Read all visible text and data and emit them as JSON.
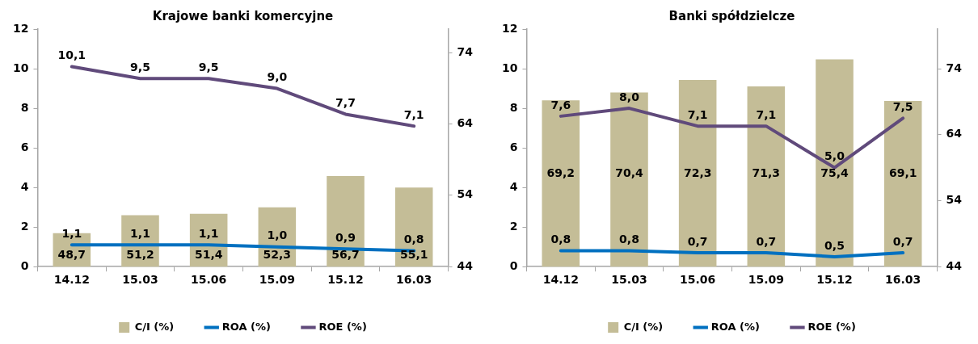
{
  "chart_data": [
    {
      "type": "bar",
      "title": "Krajowe banki komercyjne",
      "categories": [
        "14.12",
        "15.03",
        "15.06",
        "15.09",
        "15.12",
        "16.03"
      ],
      "ylim": [
        0,
        12
      ],
      "yticks": [
        0,
        2,
        4,
        6,
        8,
        10,
        12
      ],
      "y2lim": [
        44,
        77.3
      ],
      "y2ticks": [
        44,
        54,
        64,
        74
      ],
      "grid": false,
      "legend": "bottom",
      "marker": "none",
      "series": [
        {
          "name": "C/I (%)",
          "axis": "y2",
          "color": "#c4bd97",
          "values": [
            48.7,
            51.2,
            51.4,
            52.3,
            56.7,
            55.1
          ],
          "value_labels": [
            "48,7",
            "51,2",
            "51,4",
            "52,3",
            "56,7",
            "55,1"
          ]
        },
        {
          "name": "ROA (%)",
          "type": "line",
          "color": "#0070c0",
          "values": [
            1.1,
            1.1,
            1.1,
            1.0,
            0.9,
            0.8
          ],
          "value_labels": [
            "1,1",
            "1,1",
            "1,1",
            "1,0",
            "0,9",
            "0,8"
          ]
        },
        {
          "name": "ROE (%)",
          "type": "line",
          "color": "#604a7b",
          "values": [
            10.1,
            9.5,
            9.5,
            9.0,
            7.7,
            7.1
          ],
          "value_labels": [
            "10,1",
            "9,5",
            "9,5",
            "9,0",
            "7,7",
            "7,1"
          ]
        }
      ]
    },
    {
      "type": "bar",
      "title": "Banki spółdzielcze",
      "categories": [
        "14.12",
        "15.03",
        "15.06",
        "15.09",
        "15.12",
        "16.03"
      ],
      "ylim": [
        0,
        12
      ],
      "yticks": [
        0,
        2,
        4,
        6,
        8,
        10,
        12
      ],
      "y2lim": [
        44,
        80
      ],
      "y2ticks": [
        44,
        54,
        64,
        74
      ],
      "grid": false,
      "legend": "bottom",
      "marker": "none",
      "series": [
        {
          "name": "C/I (%)",
          "axis": "y2",
          "color": "#c4bd97",
          "values": [
            69.2,
            70.4,
            72.3,
            71.3,
            75.4,
            69.1
          ],
          "value_labels": [
            "69,2",
            "70,4",
            "72,3",
            "71,3",
            "75,4",
            "69,1"
          ]
        },
        {
          "name": "ROA (%)",
          "type": "line",
          "color": "#0070c0",
          "values": [
            0.8,
            0.8,
            0.7,
            0.7,
            0.5,
            0.7
          ],
          "value_labels": [
            "0,8",
            "0,8",
            "0,7",
            "0,7",
            "0,5",
            "0,7"
          ]
        },
        {
          "name": "ROE (%)",
          "type": "line",
          "color": "#604a7b",
          "values": [
            7.6,
            8.0,
            7.1,
            7.1,
            5.0,
            7.5
          ],
          "value_labels": [
            "7,6",
            "8,0",
            "7,1",
            "7,1",
            "5,0",
            "7,5"
          ]
        }
      ]
    }
  ]
}
